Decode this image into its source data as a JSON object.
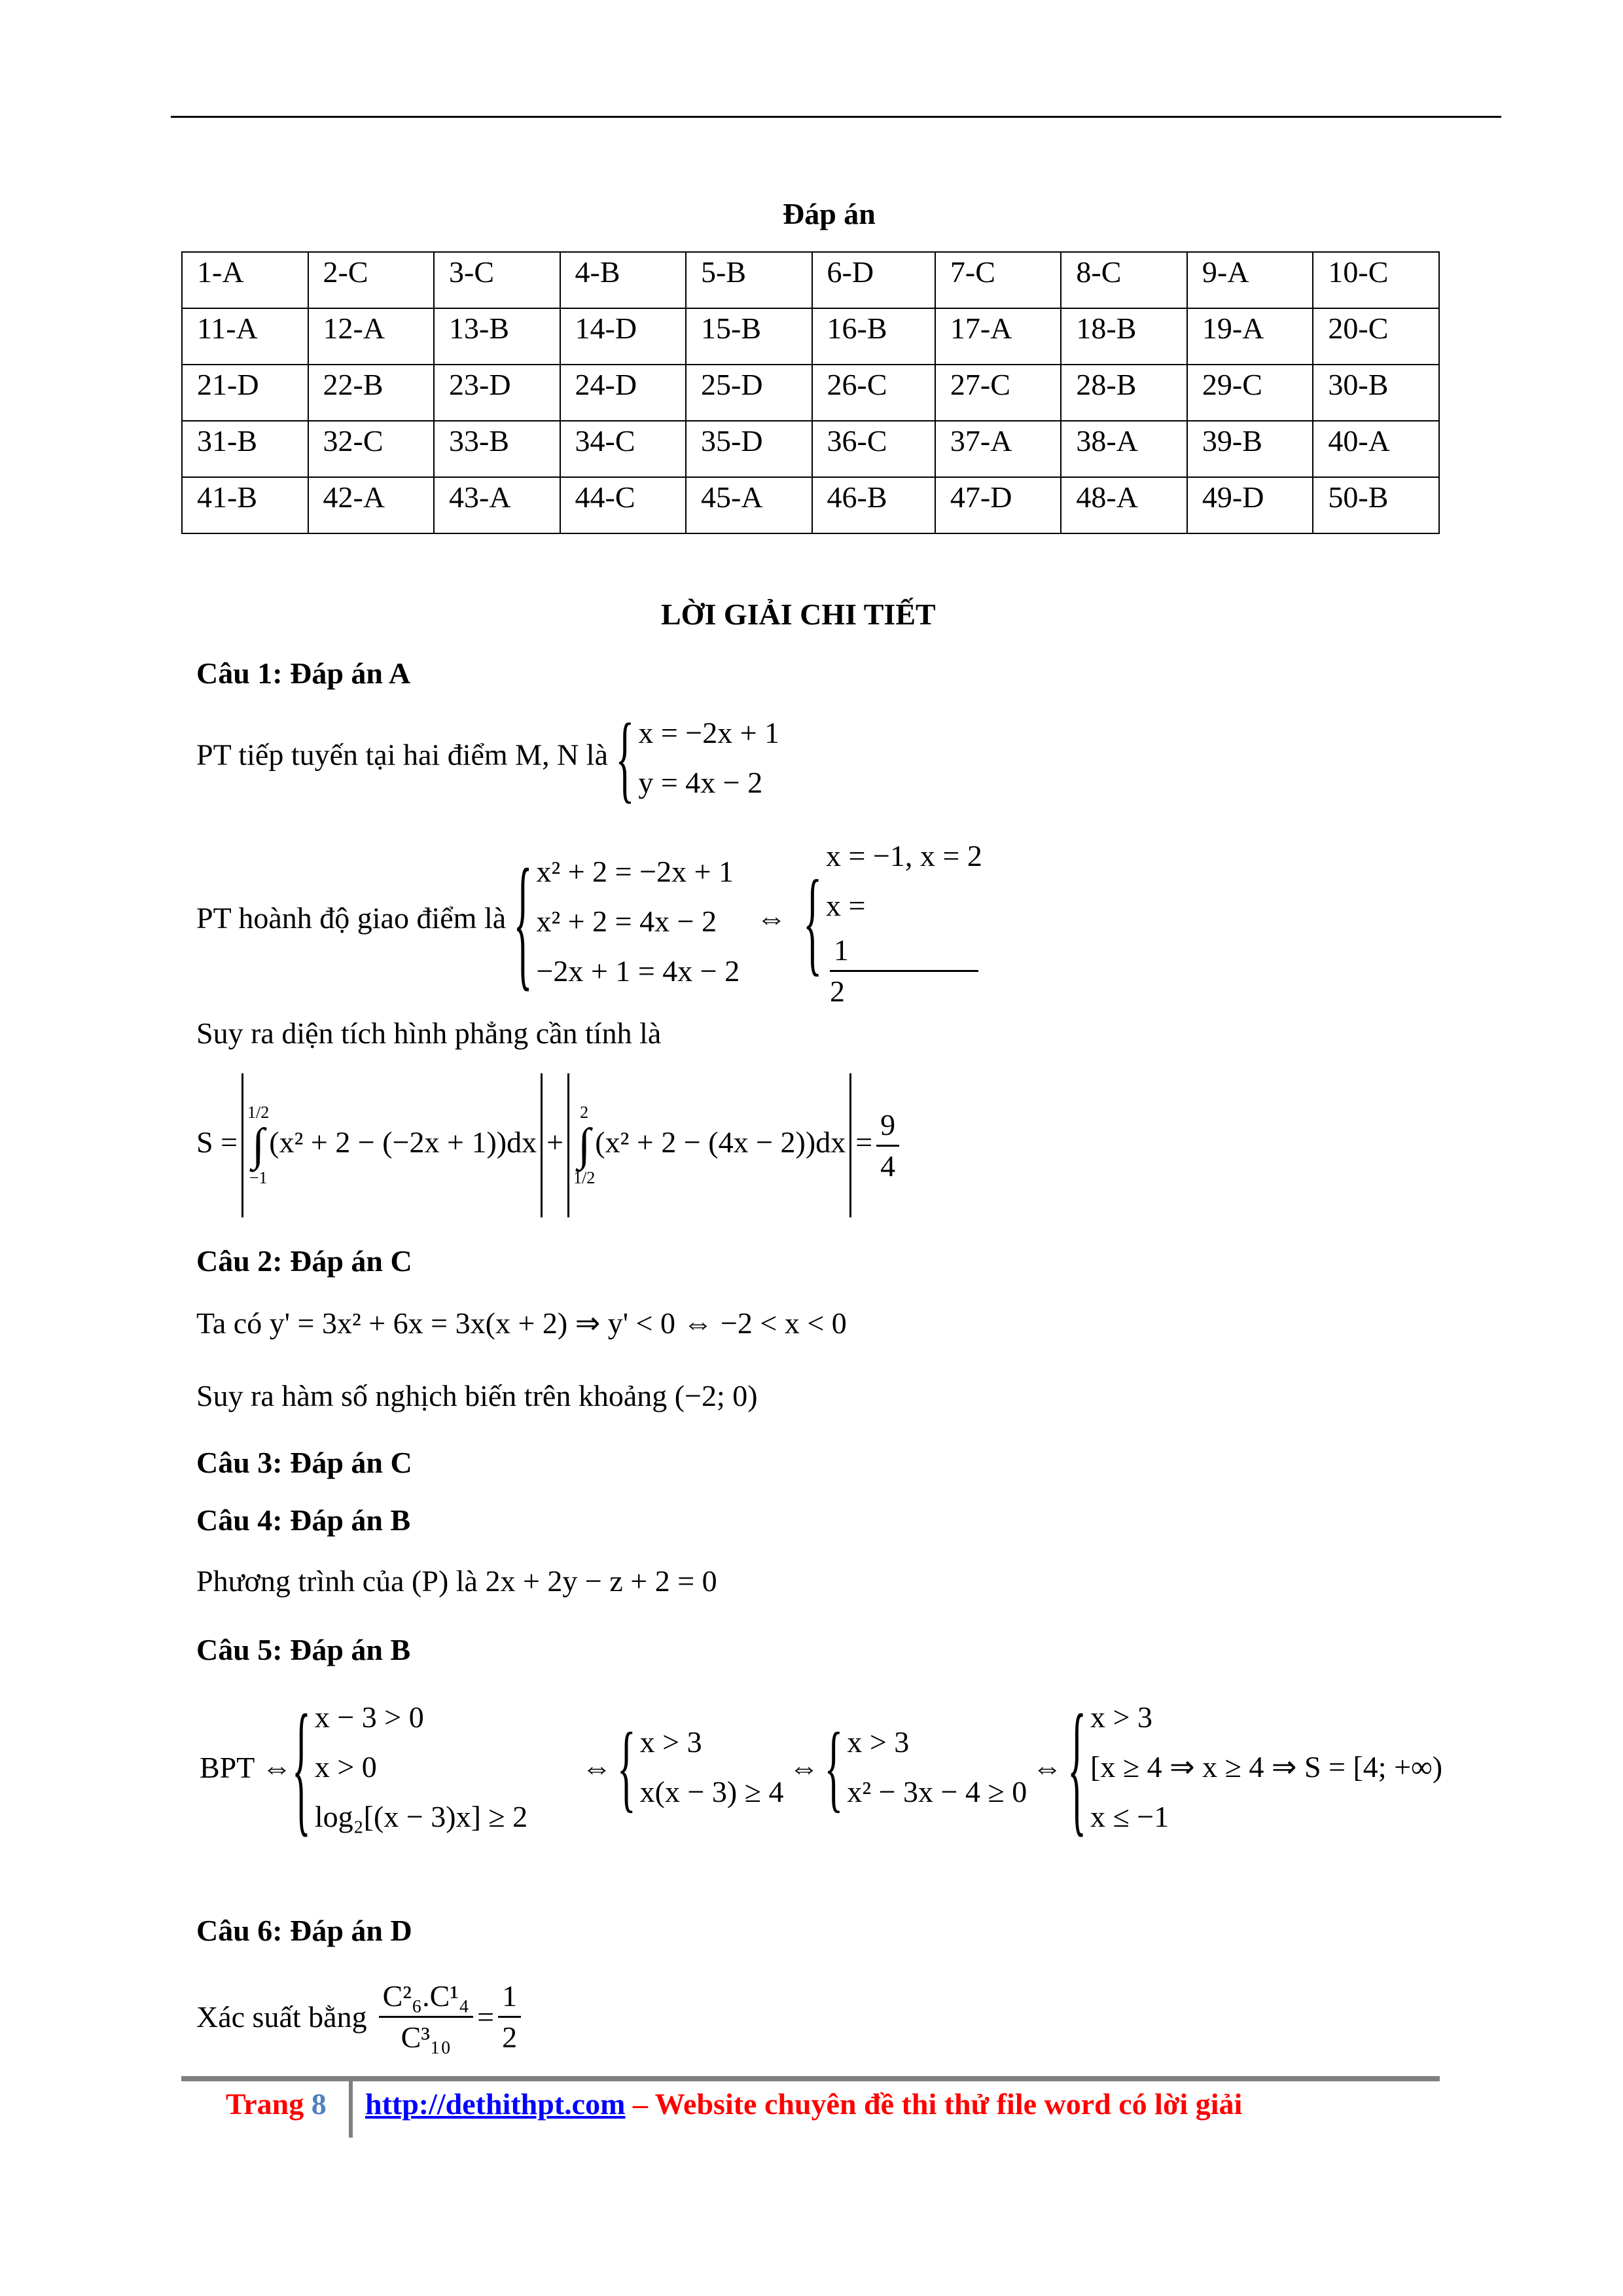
{
  "title": "Đáp án",
  "answers": [
    [
      "1-A",
      "2-C",
      "3-C",
      "4-B",
      "5-B",
      "6-D",
      "7-C",
      "8-C",
      "9-A",
      "10-C"
    ],
    [
      "11-A",
      "12-A",
      "13-B",
      "14-D",
      "15-B",
      "16-B",
      "17-A",
      "18-B",
      "19-A",
      "20-C"
    ],
    [
      "21-D",
      "22-B",
      "23-D",
      "24-D",
      "25-D",
      "26-C",
      "27-C",
      "28-B",
      "29-C",
      "30-B"
    ],
    [
      "31-B",
      "32-C",
      "33-B",
      "34-C",
      "35-D",
      "36-C",
      "37-A",
      "38-A",
      "39-B",
      "40-A"
    ],
    [
      "41-B",
      "42-A",
      "43-A",
      "44-C",
      "45-A",
      "46-B",
      "47-D",
      "48-A",
      "49-D",
      "50-B"
    ]
  ],
  "heading": "LỜI GIẢI CHI TIẾT",
  "q1": {
    "title": "Câu 1: Đáp án A",
    "tangent_text": "PT tiếp tuyến tại hai điểm M, N là",
    "tangent": [
      "x = −2x + 1",
      "y = 4x − 2"
    ],
    "inter_text": "PT hoành độ giao điểm là",
    "inter": [
      "x² + 2 = −2x + 1",
      "x² + 2 = 4x − 2",
      "−2x + 1 = 4x − 2"
    ],
    "iff": "⇔",
    "sol1": "x = −1, x = 2",
    "sol2_lhs": "x =",
    "sol2_num": "1",
    "sol2_den": "2",
    "area_text": "Suy ra diện tích hình phẳng cần tính là",
    "S": "S =",
    "int1_upper": "1/2",
    "int1_lower": "−1",
    "int1_body": "(x² + 2 − (−2x + 1))dx",
    "plus": "+",
    "int2_upper": "2",
    "int2_lower": "1/2",
    "int2_body": "(x² + 2 − (4x − 2))dx",
    "eq": "=",
    "res_num": "9",
    "res_den": "4"
  },
  "q2": {
    "title": "Câu 2: Đáp án C",
    "line1": "Ta có  y' = 3x² + 6x = 3x(x + 2) ⇒ y' < 0 ⇔ −2 < x < 0",
    "line2": "Suy ra hàm số nghịch biến trên khoảng (−2; 0)"
  },
  "q3": {
    "title": "Câu 3: Đáp án C"
  },
  "q4": {
    "title": "Câu 4: Đáp án B",
    "line1": "Phương trình của (P) là  2x + 2y − z + 2 = 0"
  },
  "q5": {
    "title": "Câu 5: Đáp án B",
    "bpt": "BPT ⇔",
    "s1": [
      "x − 3 > 0",
      "x > 0",
      "log₂[(x − 3)x] ≥ 2"
    ],
    "iff": "⇔",
    "s2": [
      "x > 3",
      "x(x − 3) ≥ 4"
    ],
    "s3": [
      "x > 3",
      "x² − 3x − 4 ≥ 0"
    ],
    "s4": [
      "x > 3",
      "[x ≥ 4 ⇒ x ≥ 4 ⇒ S = [4; +∞)",
      "x ≤ −1"
    ]
  },
  "q6": {
    "title": "Câu 6: Đáp án D",
    "text": "Xác suất bằng",
    "num": "C²₆.C¹₄",
    "den": "C³₁₀",
    "eq": "=",
    "r_num": "1",
    "r_den": "2"
  },
  "footer": {
    "page_label": "Trang",
    "page_number": "8",
    "link": "http://dethithpt.com",
    "tagline": " – Website chuyên đề thi thử file word có lời giải"
  },
  "colors": {
    "footer_text": "#ff0000",
    "link": "#0000ff",
    "page_number": "#4f81bd",
    "rule": "#808080"
  }
}
